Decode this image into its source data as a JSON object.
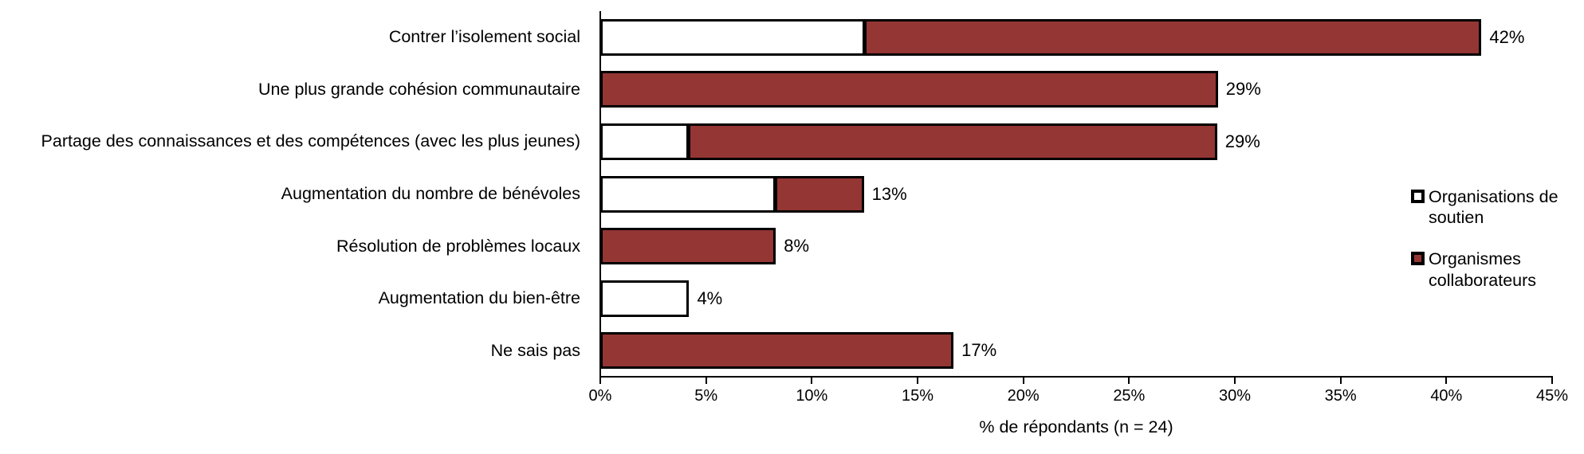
{
  "chart_data": {
    "type": "bar",
    "orientation": "horizontal",
    "stacked": true,
    "title": "",
    "xlabel": "% de répondants (n = 24)",
    "ylabel": "",
    "xlim": [
      0,
      45
    ],
    "grid": false,
    "legend_position": "right",
    "x_ticks": [
      "0%",
      "5%",
      "10%",
      "15%",
      "20%",
      "25%",
      "30%",
      "35%",
      "40%",
      "45%"
    ],
    "x_tick_values": [
      0,
      5,
      10,
      15,
      20,
      25,
      30,
      35,
      40,
      45
    ],
    "categories": [
      "Contrer l’isolement social",
      "Une plus grande cohésion communautaire",
      "Partage des connaissances et des compétences (avec les plus jeunes)",
      "Augmentation du nombre de bénévoles",
      "Résolution de problèmes locaux",
      "Augmentation du bien-être",
      "Ne sais pas"
    ],
    "series": [
      {
        "name": "Organisations de soutien",
        "color": "#FFFFFF",
        "values": [
          12.5,
          0,
          4.2,
          8.3,
          0,
          4.2,
          0
        ]
      },
      {
        "name": "Organismes collaborateurs",
        "color": "#943634",
        "values": [
          29.2,
          29.2,
          25.0,
          4.2,
          8.3,
          0,
          16.7
        ]
      }
    ],
    "total_labels": [
      "42%",
      "29%",
      "29%",
      "13%",
      "8%",
      "4%",
      "17%"
    ],
    "legend": [
      {
        "label": "Organisations de soutien",
        "color": "#FFFFFF"
      },
      {
        "label": "Organismes collaborateurs",
        "color": "#943634"
      }
    ]
  },
  "colors": {
    "bar_border": "#000000",
    "axis": "#000000",
    "text": "#000000",
    "background": "#FFFFFF",
    "accent_red": "#943634"
  }
}
